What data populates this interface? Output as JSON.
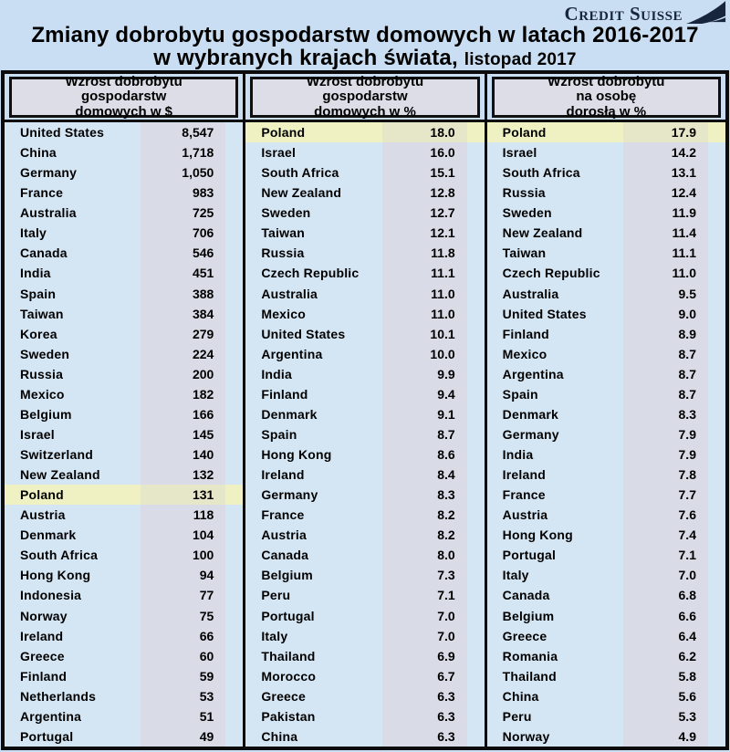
{
  "logo": {
    "brand": "Credit Suisse",
    "icon": "sail-icon"
  },
  "title": {
    "line1": "Zmiany dobrobytu gospodarstw domowych w latach 2016-2017",
    "line2": "w wybranych krajach świata,",
    "date": "listopad 2017"
  },
  "colors": {
    "page_bg": "#c9def2",
    "row_bg": "#d4e5f3",
    "value_bg": "#d9dbe6",
    "header_bg": "#dcdde7",
    "highlight_bg": "#eff1c3",
    "highlight_value_bg": "#e6e7c9",
    "border": "#0b0b0b",
    "logo_navy": "#18263d"
  },
  "chart_data": {
    "type": "table",
    "title": "Zmiany dobrobytu gospodarstw domowych w latach 2016-2017 w wybranych krajach świata, listopad 2017",
    "source_brand": "Credit Suisse",
    "highlight_row": "Poland",
    "tables": [
      {
        "header": "Wzrost dobrobytu gospodarstw domowych w $",
        "header_lines": [
          "Wzrost dobrobytu",
          "gospodarstw",
          "domowych w $"
        ],
        "rows": [
          [
            "United States",
            "8,547"
          ],
          [
            "China",
            "1,718"
          ],
          [
            "Germany",
            "1,050"
          ],
          [
            "France",
            "983"
          ],
          [
            "Australia",
            "725"
          ],
          [
            "Italy",
            "706"
          ],
          [
            "Canada",
            "546"
          ],
          [
            "India",
            "451"
          ],
          [
            "Spain",
            "388"
          ],
          [
            "Taiwan",
            "384"
          ],
          [
            "Korea",
            "279"
          ],
          [
            "Sweden",
            "224"
          ],
          [
            "Russia",
            "200"
          ],
          [
            "Mexico",
            "182"
          ],
          [
            "Belgium",
            "166"
          ],
          [
            "Israel",
            "145"
          ],
          [
            "Switzerland",
            "140"
          ],
          [
            "New Zealand",
            "132"
          ],
          [
            "Poland",
            "131"
          ],
          [
            "Austria",
            "118"
          ],
          [
            "Denmark",
            "104"
          ],
          [
            "South Africa",
            "100"
          ],
          [
            "Hong Kong",
            "94"
          ],
          [
            "Indonesia",
            "77"
          ],
          [
            "Norway",
            "75"
          ],
          [
            "Ireland",
            "66"
          ],
          [
            "Greece",
            "60"
          ],
          [
            "Finland",
            "59"
          ],
          [
            "Netherlands",
            "53"
          ],
          [
            "Argentina",
            "51"
          ],
          [
            "Portugal",
            "49"
          ]
        ]
      },
      {
        "header": "Wzrost dobrobytu gospodarstw domowych w %",
        "header_lines": [
          "Wzrost dobrobytu",
          "gospodarstw",
          "domowych w %"
        ],
        "rows": [
          [
            "Poland",
            "18.0"
          ],
          [
            "Israel",
            "16.0"
          ],
          [
            "South Africa",
            "15.1"
          ],
          [
            "New Zealand",
            "12.8"
          ],
          [
            "Sweden",
            "12.7"
          ],
          [
            "Taiwan",
            "12.1"
          ],
          [
            "Russia",
            "11.8"
          ],
          [
            "Czech Republic",
            "11.1"
          ],
          [
            "Australia",
            "11.0"
          ],
          [
            "Mexico",
            "11.0"
          ],
          [
            "United States",
            "10.1"
          ],
          [
            "Argentina",
            "10.0"
          ],
          [
            "India",
            "9.9"
          ],
          [
            "Finland",
            "9.4"
          ],
          [
            "Denmark",
            "9.1"
          ],
          [
            "Spain",
            "8.7"
          ],
          [
            "Hong Kong",
            "8.6"
          ],
          [
            "Ireland",
            "8.4"
          ],
          [
            "Germany",
            "8.3"
          ],
          [
            "France",
            "8.2"
          ],
          [
            "Austria",
            "8.2"
          ],
          [
            "Canada",
            "8.0"
          ],
          [
            "Belgium",
            "7.3"
          ],
          [
            "Peru",
            "7.1"
          ],
          [
            "Portugal",
            "7.0"
          ],
          [
            "Italy",
            "7.0"
          ],
          [
            "Thailand",
            "6.9"
          ],
          [
            "Morocco",
            "6.7"
          ],
          [
            "Greece",
            "6.3"
          ],
          [
            "Pakistan",
            "6.3"
          ],
          [
            "China",
            "6.3"
          ]
        ]
      },
      {
        "header": "Wzrost dobrobytu na osobę dorosłą w %",
        "header_lines": [
          "Wzrost dobrobytu",
          "na osobę",
          "dorosłą w %"
        ],
        "rows": [
          [
            "Poland",
            "17.9"
          ],
          [
            "Israel",
            "14.2"
          ],
          [
            "South Africa",
            "13.1"
          ],
          [
            "Russia",
            "12.4"
          ],
          [
            "Sweden",
            "11.9"
          ],
          [
            "New Zealand",
            "11.4"
          ],
          [
            "Taiwan",
            "11.1"
          ],
          [
            "Czech Republic",
            "11.0"
          ],
          [
            "Australia",
            "9.5"
          ],
          [
            "United States",
            "9.0"
          ],
          [
            "Finland",
            "8.9"
          ],
          [
            "Mexico",
            "8.7"
          ],
          [
            "Argentina",
            "8.7"
          ],
          [
            "Spain",
            "8.7"
          ],
          [
            "Denmark",
            "8.3"
          ],
          [
            "Germany",
            "7.9"
          ],
          [
            "India",
            "7.9"
          ],
          [
            "Ireland",
            "7.8"
          ],
          [
            "France",
            "7.7"
          ],
          [
            "Austria",
            "7.6"
          ],
          [
            "Hong Kong",
            "7.4"
          ],
          [
            "Portugal",
            "7.1"
          ],
          [
            "Italy",
            "7.0"
          ],
          [
            "Canada",
            "6.8"
          ],
          [
            "Belgium",
            "6.6"
          ],
          [
            "Greece",
            "6.4"
          ],
          [
            "Romania",
            "6.2"
          ],
          [
            "Thailand",
            "5.8"
          ],
          [
            "China",
            "5.6"
          ],
          [
            "Peru",
            "5.3"
          ],
          [
            "Norway",
            "4.9"
          ]
        ]
      }
    ]
  }
}
